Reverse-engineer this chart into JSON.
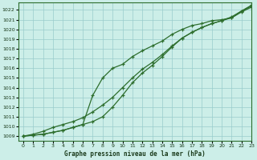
{
  "title": "Graphe pression niveau de la mer (hPa)",
  "bg_color": "#cceee8",
  "grid_color": "#99cccc",
  "line_color": "#2d6e2d",
  "xlim": [
    -0.5,
    23
  ],
  "ylim": [
    1008.5,
    1022.8
  ],
  "xticks": [
    0,
    1,
    2,
    3,
    4,
    5,
    6,
    7,
    8,
    9,
    10,
    11,
    12,
    13,
    14,
    15,
    16,
    17,
    18,
    19,
    20,
    21,
    22,
    23
  ],
  "yticks": [
    1009,
    1010,
    1011,
    1012,
    1013,
    1014,
    1015,
    1016,
    1017,
    1018,
    1019,
    1020,
    1021,
    1022
  ],
  "series1_x": [
    0,
    1,
    2,
    3,
    4,
    5,
    6,
    7,
    8,
    9,
    10,
    11,
    12,
    13,
    14,
    15,
    16,
    17,
    18,
    19,
    20,
    21,
    22,
    23
  ],
  "series1_y": [
    1009.0,
    1009.1,
    1009.2,
    1009.4,
    1009.6,
    1009.9,
    1010.2,
    1013.2,
    1015.0,
    1016.0,
    1016.4,
    1017.2,
    1017.8,
    1018.3,
    1018.8,
    1019.5,
    1020.0,
    1020.4,
    1020.6,
    1020.9,
    1021.0,
    1021.2,
    1021.9,
    1022.5
  ],
  "series2_x": [
    0,
    1,
    2,
    3,
    4,
    5,
    6,
    7,
    8,
    9,
    10,
    11,
    12,
    13,
    14,
    15,
    16,
    17,
    18,
    19,
    20,
    21,
    22,
    23
  ],
  "series2_y": [
    1009.0,
    1009.2,
    1009.5,
    1009.9,
    1010.2,
    1010.5,
    1010.9,
    1011.5,
    1012.2,
    1013.0,
    1014.0,
    1015.0,
    1015.9,
    1016.6,
    1017.4,
    1018.3,
    1019.1,
    1019.7,
    1020.2,
    1020.6,
    1020.9,
    1021.2,
    1021.8,
    1022.3
  ],
  "series3_x": [
    0,
    1,
    2,
    3,
    4,
    5,
    6,
    7,
    8,
    9,
    10,
    11,
    12,
    13,
    14,
    15,
    16,
    17,
    18,
    19,
    20,
    21,
    22,
    23
  ],
  "series3_y": [
    1009.0,
    1009.1,
    1009.2,
    1009.4,
    1009.6,
    1009.9,
    1010.2,
    1010.5,
    1011.0,
    1012.0,
    1013.2,
    1014.5,
    1015.5,
    1016.3,
    1017.2,
    1018.2,
    1019.1,
    1019.7,
    1020.2,
    1020.6,
    1020.9,
    1021.3,
    1021.9,
    1022.4
  ]
}
